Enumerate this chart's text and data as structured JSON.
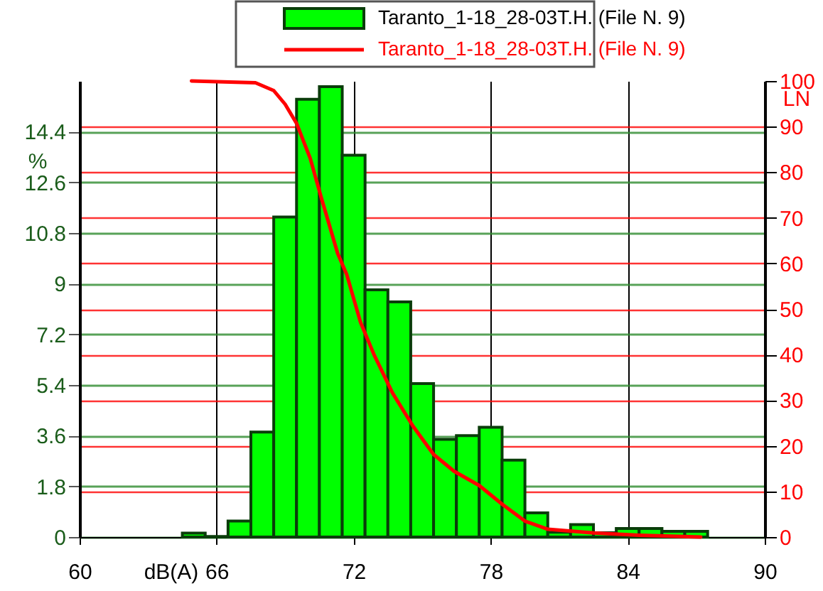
{
  "chart_data": {
    "type": "histogram",
    "xlabel": "dB(A)",
    "ylabel": "%",
    "y2label": "LN",
    "xlim": [
      60,
      90
    ],
    "xticks": [
      60,
      66,
      72,
      78,
      84,
      90
    ],
    "ylim": [
      0,
      16.2
    ],
    "yticks": [
      0,
      1.8,
      3.6,
      5.4,
      7.2,
      9,
      10.8,
      12.6,
      14.4
    ],
    "y2lim": [
      0,
      100
    ],
    "y2ticks": [
      0,
      10,
      20,
      30,
      40,
      50,
      60,
      70,
      80,
      90,
      100
    ],
    "grid": true,
    "legend": "top",
    "series": [
      {
        "name": "Taranto_1-18_28-03T.H. (File N. 9)",
        "color": "#00ff00",
        "bins": [
          64.5,
          65.5,
          66.5,
          67.5,
          68.5,
          69.5,
          70.5,
          71.5,
          72.5,
          73.5,
          74.5,
          75.5,
          76.5,
          77.5,
          78.5,
          79.5,
          80.5,
          81.5,
          82.5,
          83.5,
          84.5,
          85.5,
          86.5,
          87.5
        ],
        "values": [
          0.14,
          0.02,
          0.57,
          3.73,
          11.37,
          15.55,
          16.0,
          13.56,
          8.78,
          8.35,
          5.45,
          3.47,
          3.6,
          3.9,
          2.73,
          0.86,
          0.17,
          0.44,
          0.15,
          0.3,
          0.3,
          0.2,
          0.2
        ]
      },
      {
        "name": "Taranto_1-18_28-03T.H. (File N. 9)",
        "type": "line",
        "axis": "y2",
        "color": "#ff0000",
        "x": [
          64.9,
          67.7,
          68.5,
          69.0,
          69.5,
          70.1,
          70.6,
          71.3,
          71.7,
          72.3,
          72.9,
          73.7,
          74.6,
          75.5,
          76.4,
          77.5,
          78.5,
          79.5,
          80.5,
          82.5,
          84.5,
          87.2
        ],
        "values": [
          100,
          99.6,
          97.9,
          94.9,
          90.7,
          83.0,
          74.1,
          62.2,
          57.5,
          47.1,
          39.9,
          31.6,
          24.3,
          18.1,
          14.4,
          11.3,
          7.2,
          3.5,
          1.7,
          0.9,
          0.4,
          0
        ]
      }
    ]
  }
}
